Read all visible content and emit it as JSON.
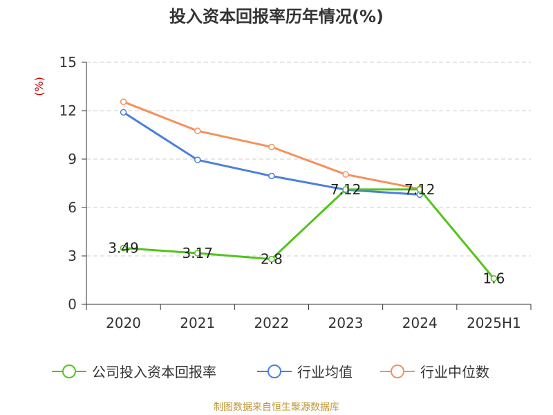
{
  "title": "投入资本回报率历年情况(%)",
  "source": "制图数据来自恒生聚源数据库",
  "chart_data": {
    "type": "line",
    "title": "投入资本回报率历年情况(%)",
    "ylabel": "(%)",
    "categories": [
      "2020",
      "2021",
      "2022",
      "2023",
      "2024",
      "2025H1"
    ],
    "ylim": [
      0,
      15
    ],
    "yticks": [
      0,
      3,
      6,
      9,
      12,
      15
    ],
    "grid": true,
    "legend_position": "bottom",
    "series": [
      {
        "name": "公司投入资本回报率",
        "color": "#52c41a",
        "values": [
          3.49,
          3.17,
          2.8,
          7.12,
          7.12,
          1.6
        ],
        "labels": [
          "3.49",
          "3.17",
          "2.8",
          "7.12",
          "7.12",
          "1.6"
        ]
      },
      {
        "name": "行业均值",
        "color": "#4a7fdb",
        "values": [
          11.9,
          8.95,
          7.95,
          7.1,
          6.8,
          null
        ]
      },
      {
        "name": "行业中位数",
        "color": "#f5915b",
        "values": [
          12.55,
          10.75,
          9.75,
          8.05,
          7.15,
          null
        ]
      }
    ]
  }
}
